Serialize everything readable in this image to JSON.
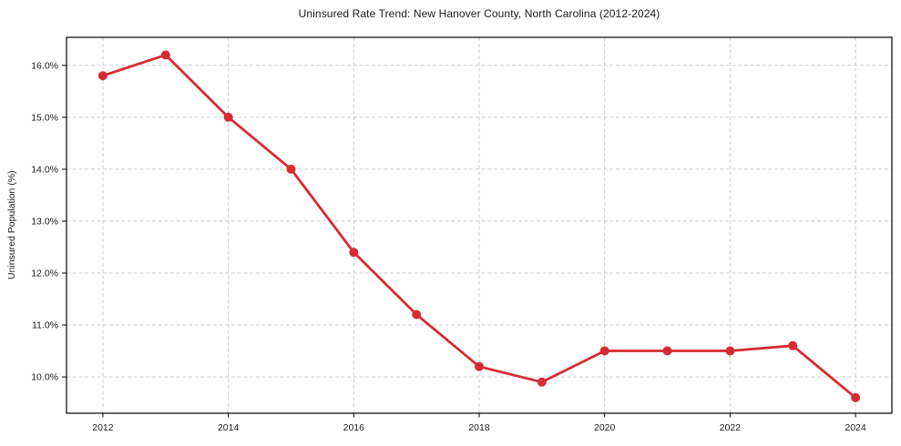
{
  "chart_data": {
    "type": "line",
    "title": "Uninsured Rate Trend: New Hanover County, North Carolina (2012-2024)",
    "xlabel": "",
    "ylabel": "Uninsured Population (%)",
    "x": [
      2012,
      2013,
      2014,
      2015,
      2016,
      2017,
      2018,
      2019,
      2020,
      2021,
      2022,
      2023,
      2024
    ],
    "values": [
      15.8,
      16.2,
      15.0,
      14.0,
      12.4,
      11.2,
      10.2,
      9.9,
      10.5,
      10.5,
      10.5,
      10.6,
      9.6
    ],
    "xlim": [
      2011.42,
      2024.58
    ],
    "ylim": [
      9.3,
      16.54
    ],
    "xticks": {
      "values": [
        2012,
        2014,
        2016,
        2018,
        2020,
        2022,
        2024
      ],
      "labels": [
        "2012",
        "2014",
        "2016",
        "2018",
        "2020",
        "2022",
        "2024"
      ]
    },
    "yticks": {
      "values": [
        10.0,
        11.0,
        12.0,
        13.0,
        14.0,
        15.0,
        16.0
      ],
      "labels": [
        "10.0%",
        "11.0%",
        "12.0%",
        "13.0%",
        "14.0%",
        "15.0%",
        "16.0%"
      ]
    },
    "grid": true,
    "grid_style": "dashed",
    "legend": false,
    "marker": "circle",
    "colors": {
      "line": "#d62b33",
      "grid": "#cccccc",
      "spine": "#000000",
      "text": "#1a1a1a",
      "background": "#ffffff"
    }
  }
}
